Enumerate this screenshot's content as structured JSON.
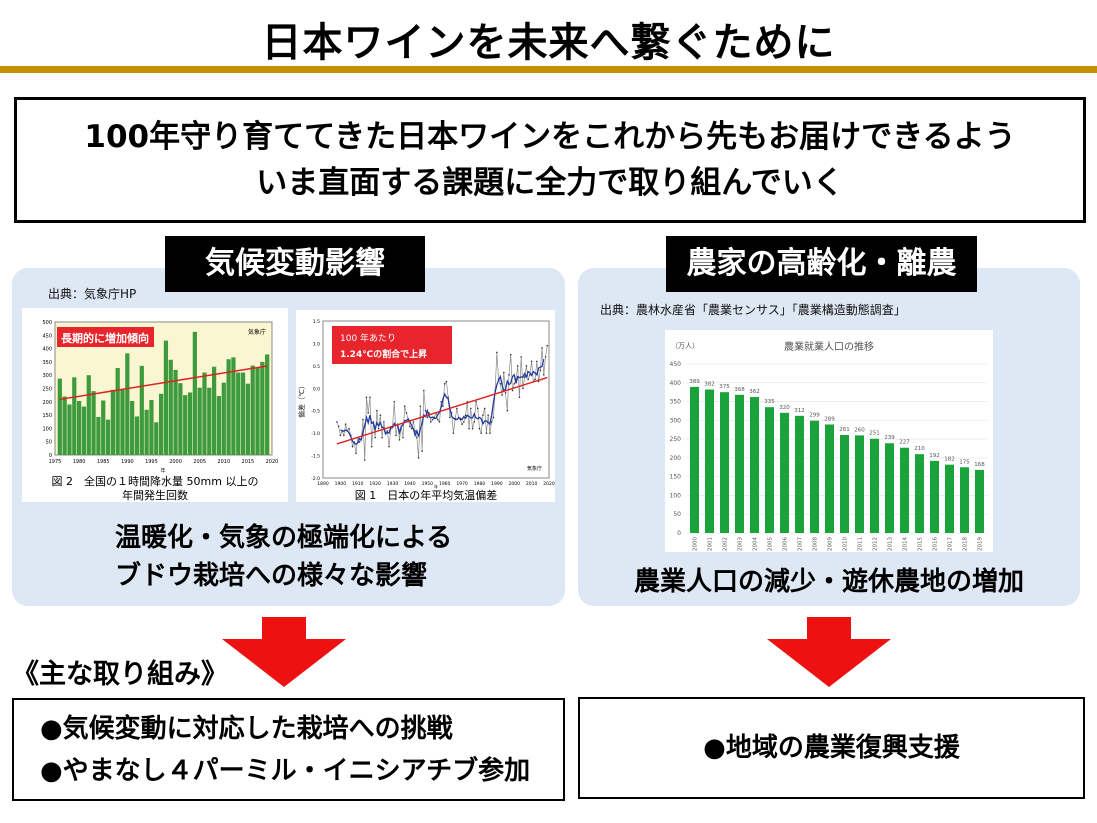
{
  "title": "日本ワインを未来へ繋ぐために",
  "colors": {
    "rule": "#c49000",
    "panel": "#dde8f4",
    "arrow": "#ee1111",
    "bar_green": "#1aa33a",
    "rain_bar": "#3d9a3d",
    "rain_bg": "#fbf6d2",
    "trend": "#dd2222",
    "moving_avg": "#1f3aa0"
  },
  "mission": {
    "line1": "100年守り育ててきた日本ワインをこれから先もお届けできるよう",
    "line2": "いま直面する課題に全力で取り組んでいく"
  },
  "left": {
    "label": "気候変動影響",
    "source": "出典：気象庁HP",
    "caption1": "温暖化・気象の極端化による",
    "caption2": "ブドウ栽培への様々な影響",
    "measures_heading": "《主な取り組み》",
    "measures": [
      "●気候変動に対応した栽培への挑戦",
      "●やまなし４パーミル・イニシアチブ参加"
    ]
  },
  "right": {
    "label": "農家の高齢化・離農",
    "source": "出典：農林水産省「農業センサス」「農業構造動態調査」",
    "caption": "農業人口の減少・遊休農地の増加",
    "measure": "●地域の農業復興支援"
  },
  "chart_data": [
    {
      "type": "bar",
      "title": "",
      "badge": "長期的に増加傾向",
      "credit": "気象庁",
      "caption_line1": "図 2　全国の１時間降水量 50mm 以上の",
      "caption_line2": "年間発生回数",
      "xlabel": "年",
      "ylim": [
        0,
        500
      ],
      "yticks": [
        0,
        50,
        100,
        150,
        200,
        250,
        300,
        350,
        400,
        450,
        500
      ],
      "xticks": [
        1975,
        1980,
        1985,
        1990,
        1995,
        2000,
        2005,
        2010,
        2015,
        2020
      ],
      "x_start": 1976,
      "values": [
        287,
        220,
        190,
        292,
        203,
        182,
        300,
        240,
        143,
        205,
        133,
        245,
        327,
        245,
        382,
        203,
        145,
        335,
        170,
        207,
        123,
        230,
        430,
        358,
        320,
        270,
        225,
        235,
        463,
        253,
        310,
        253,
        332,
        222,
        272,
        360,
        367,
        310,
        310,
        268,
        336,
        330,
        350,
        378
      ],
      "trend_line": true
    },
    {
      "type": "line",
      "badge_line1": "100 年あたり",
      "badge_line2": "1.24℃の割合で上昇",
      "credit": "気象庁",
      "caption": "図 1　日本の年平均気温偏差",
      "xlabel": "年",
      "ylabel": "偏差（℃）",
      "ylim": [
        -2.0,
        1.5
      ],
      "yticks": [
        "-2.0",
        "-1.5",
        "-1.0",
        "-0.5",
        "0.0",
        "0.5",
        "1.0",
        "1.5"
      ],
      "xlim": [
        1890,
        2020
      ],
      "xticks": [
        1890,
        1900,
        1910,
        1920,
        1930,
        1940,
        1950,
        1960,
        1970,
        1980,
        1990,
        2000,
        2010,
        2020
      ],
      "x_start": 1898,
      "values": [
        -0.75,
        -0.85,
        -1.05,
        -0.95,
        -1.05,
        -0.8,
        -0.95,
        -0.9,
        -1.05,
        -1.3,
        -1.2,
        -1.45,
        -1.1,
        -1.2,
        -1.15,
        -0.7,
        -1.6,
        -0.2,
        -0.55,
        -0.2,
        -1.3,
        -0.75,
        -1.1,
        -0.5,
        -0.9,
        -0.6,
        -1.1,
        -0.75,
        -1.0,
        -0.95,
        -1.3,
        -0.9,
        -0.85,
        -0.3,
        -1.05,
        -0.8,
        -1.15,
        -0.85,
        -1.1,
        -0.4,
        -0.55,
        -0.7,
        -0.85,
        -0.9,
        -0.75,
        -0.95,
        -1.1,
        -1.55,
        -0.4,
        -1.4,
        -0.05,
        -0.5,
        -0.65,
        -0.55,
        -0.75,
        -0.7,
        -0.65,
        -0.55,
        -0.7,
        -0.75,
        -0.3,
        -0.4,
        0.1,
        0.15,
        -0.2,
        -0.65,
        -0.55,
        -1.0,
        -0.7,
        -0.45,
        -0.65,
        -0.7,
        -0.8,
        -0.75,
        -0.6,
        -0.3,
        -0.9,
        -0.45,
        -0.9,
        -0.75,
        -0.3,
        -0.45,
        -0.9,
        -1.0,
        -0.6,
        -0.45,
        -1.0,
        -0.6,
        -1.0,
        -0.75,
        -0.65,
        -0.05,
        0.8,
        0.2,
        0.1,
        -0.15,
        0.35,
        -0.1,
        -0.5,
        0.3,
        0.75,
        -0.05,
        0.1,
        0.2,
        0.5,
        -0.2,
        0.7,
        0.0,
        0.25,
        0.5,
        0.2,
        0.3,
        0.6,
        0.15,
        0.2,
        0.6,
        0.15,
        0.4,
        0.9,
        0.3,
        0.7,
        0.95
      ],
      "moving_average": 5,
      "trend_line": true
    },
    {
      "type": "bar",
      "title": "農業就業人口の推移",
      "ylabel": "（万人）",
      "ylim": [
        0,
        450
      ],
      "yticks": [
        0,
        50,
        100,
        150,
        200,
        250,
        300,
        350,
        400,
        450
      ],
      "grid": true,
      "categories": [
        "2000",
        "2001",
        "2002",
        "2003",
        "2004",
        "2005",
        "2006",
        "2007",
        "2008",
        "2009",
        "2010",
        "2011",
        "2012",
        "2013",
        "2014",
        "2015",
        "2016",
        "2017",
        "2018",
        "2019"
      ],
      "values": [
        389,
        382,
        375,
        368,
        362,
        335,
        320,
        312,
        299,
        289,
        261,
        260,
        251,
        239,
        227,
        210,
        192,
        182,
        175,
        168
      ]
    }
  ]
}
